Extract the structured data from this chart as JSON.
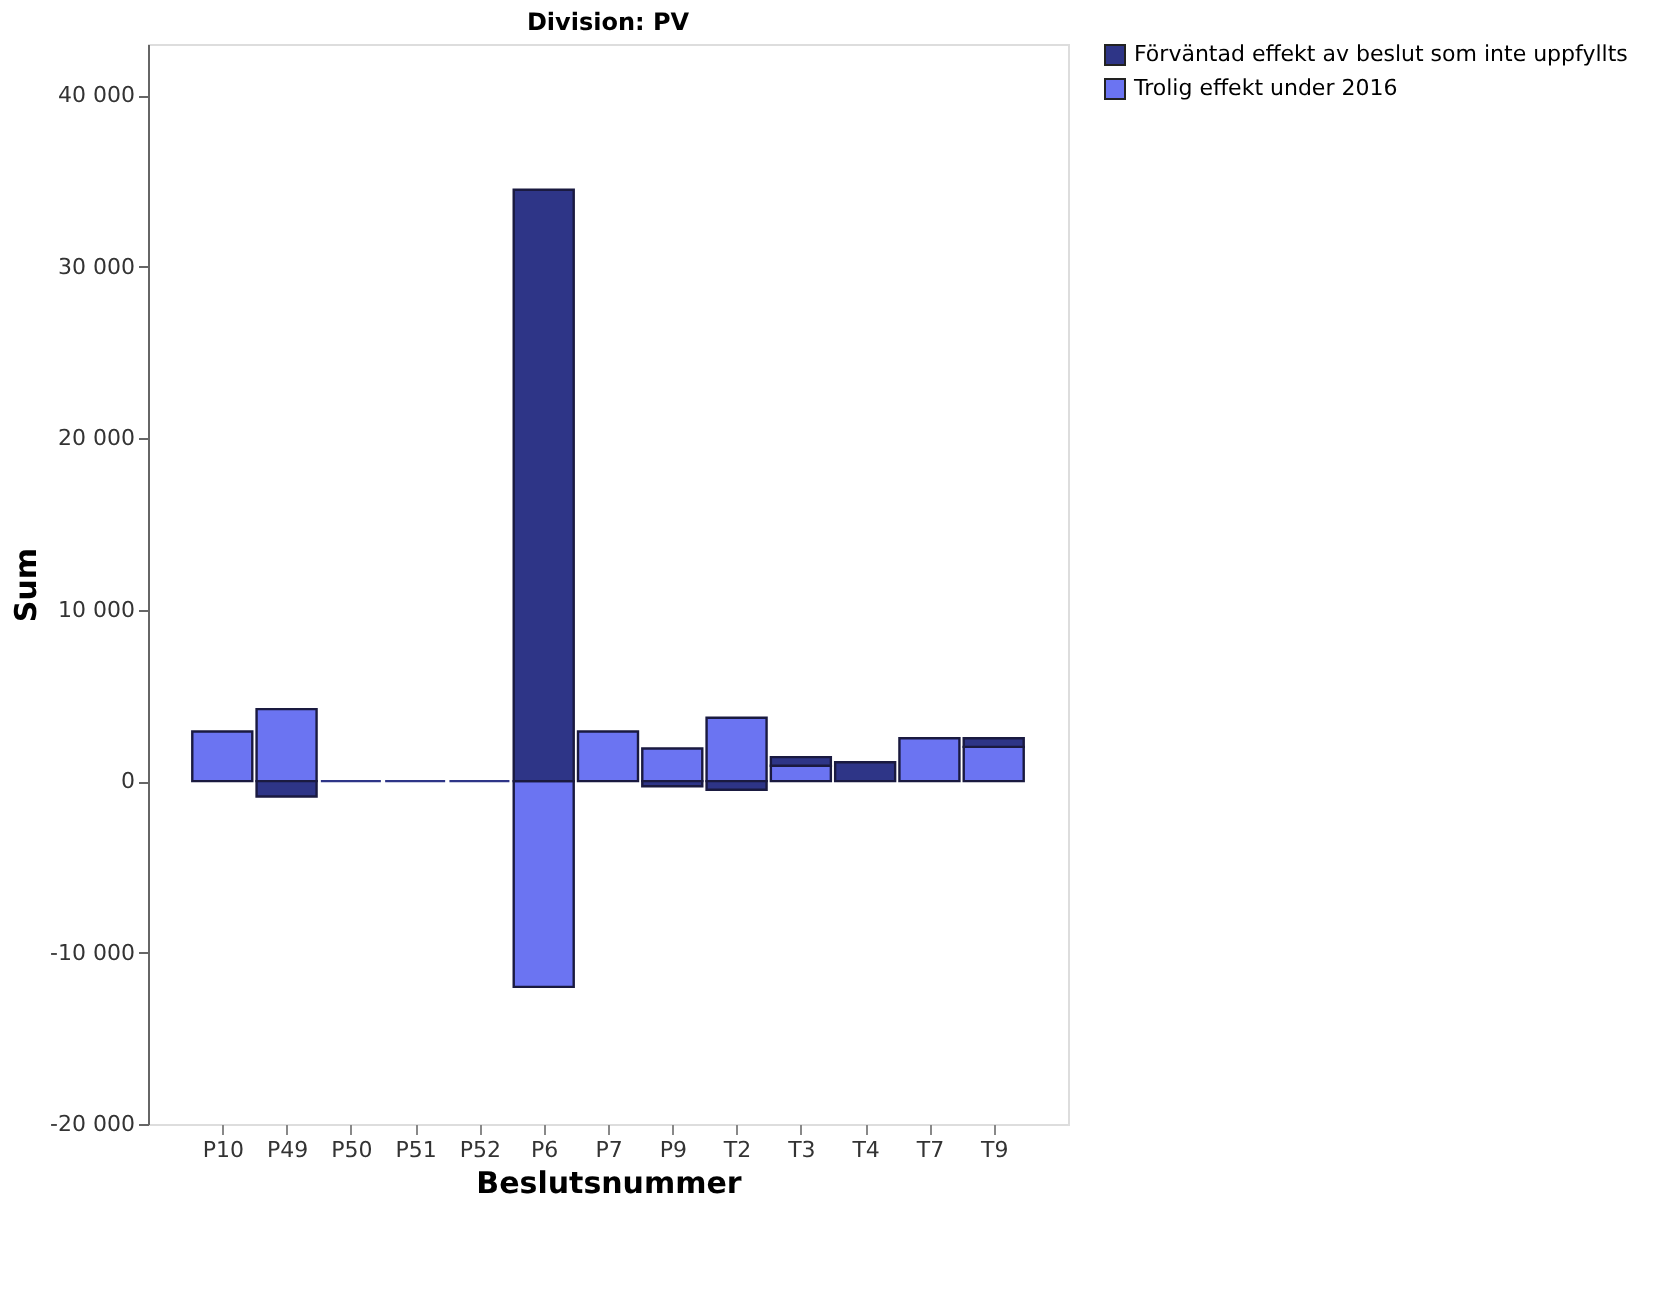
{
  "chart_data": {
    "type": "bar",
    "stacked": true,
    "title": "Division: PV",
    "xlabel": "Beslutsnummer",
    "ylabel": "Sum",
    "categories": [
      "P10",
      "P49",
      "P50",
      "P51",
      "P52",
      "P6",
      "P7",
      "P9",
      "T2",
      "T3",
      "T4",
      "T7",
      "T9"
    ],
    "series": [
      {
        "name": "Trolig effekt under 2016",
        "color": "#6b74f2",
        "values": [
          2900,
          4200,
          null,
          null,
          null,
          -12000,
          2900,
          1900,
          3700,
          900,
          null,
          2500,
          2000
        ]
      },
      {
        "name": "Förväntad effekt av beslut som inte uppfyllts",
        "color": "#2e3587",
        "values": [
          null,
          -900,
          0,
          0,
          0,
          34500,
          null,
          -300,
          -500,
          500,
          1100,
          null,
          500
        ]
      }
    ],
    "ylim": [
      -20000,
      43000
    ],
    "yticks": [
      {
        "value": -20000,
        "label": "-20 000"
      },
      {
        "value": -10000,
        "label": "-10 000"
      },
      0,
      {
        "value": 10000,
        "label": "10 000"
      },
      {
        "value": 20000,
        "label": "20 000"
      },
      {
        "value": 30000,
        "label": "30 000"
      },
      {
        "value": 40000,
        "label": "40 000"
      }
    ],
    "legend": "top right",
    "grid": false
  }
}
